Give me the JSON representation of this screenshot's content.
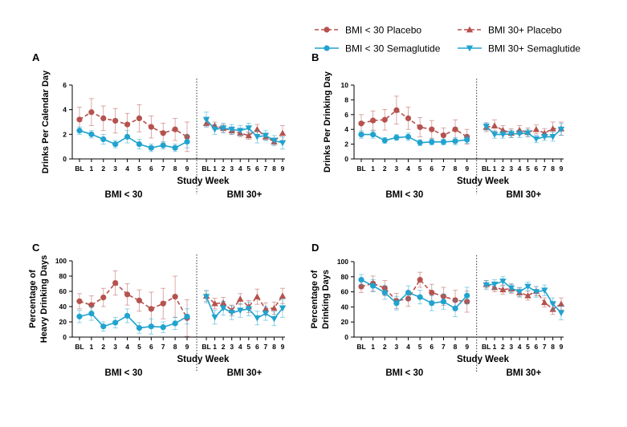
{
  "chart_data": {
    "type": "line",
    "legend": {
      "placement": "top-right",
      "entries": [
        {
          "key": "bmi_lt30_placebo",
          "name": "BMI < 30 Placebo",
          "color": "#b5524e",
          "marker": "circle",
          "dashed": true
        },
        {
          "key": "bmi_30p_placebo",
          "name": "BMI 30+ Placebo",
          "color": "#b5524e",
          "marker": "triangle-up",
          "dashed": true
        },
        {
          "key": "bmi_lt30_sema",
          "name": "BMI < 30 Semaglutide",
          "color": "#21a3cf",
          "marker": "circle",
          "dashed": false
        },
        {
          "key": "bmi_30p_sema",
          "name": "BMI 30+ Semaglutide",
          "color": "#21a3cf",
          "marker": "triangle-down",
          "dashed": false
        }
      ]
    },
    "panels": [
      {
        "label": "A",
        "ylabel_lines": [
          "Drinks Per Calendar Day"
        ],
        "xlabel": "Study Week",
        "ylim": [
          0,
          6
        ],
        "yticks": [
          0,
          2,
          4,
          6
        ],
        "groups": [
          {
            "name": "BMI < 30",
            "x": [
              "BL",
              "1",
              "2",
              "3",
              "4",
              "5",
              "6",
              "7",
              "8",
              "9"
            ],
            "series": [
              {
                "key": "bmi_lt30_placebo",
                "values": [
                  3.2,
                  3.8,
                  3.3,
                  3.1,
                  2.8,
                  3.3,
                  2.6,
                  2.1,
                  2.4,
                  1.8
                ],
                "err": [
                  1.0,
                  1.1,
                  1.0,
                  1.0,
                  0.9,
                  1.1,
                  0.9,
                  0.8,
                  0.9,
                  1.2
                ]
              },
              {
                "key": "bmi_lt30_sema",
                "values": [
                  2.3,
                  2.0,
                  1.6,
                  1.2,
                  1.8,
                  1.2,
                  0.9,
                  1.1,
                  0.9,
                  1.4
                ],
                "err": [
                  0.3,
                  0.3,
                  0.4,
                  0.3,
                  0.5,
                  0.4,
                  0.3,
                  0.3,
                  0.3,
                  0.5
                ]
              }
            ]
          },
          {
            "name": "BMI 30+",
            "x": [
              "BL",
              "1",
              "2",
              "3",
              "4",
              "5",
              "6",
              "7",
              "8",
              "9"
            ],
            "series": [
              {
                "key": "bmi_30p_placebo",
                "values": [
                  2.9,
                  2.7,
                  2.5,
                  2.3,
                  2.1,
                  1.9,
                  2.4,
                  1.8,
                  1.4,
                  2.1
                ],
                "err": [
                  0.3,
                  0.3,
                  0.3,
                  0.3,
                  0.3,
                  0.3,
                  0.4,
                  0.3,
                  0.3,
                  0.6
                ]
              },
              {
                "key": "bmi_30p_sema",
                "values": [
                  3.2,
                  2.4,
                  2.5,
                  2.4,
                  2.3,
                  2.5,
                  1.8,
                  1.9,
                  1.5,
                  1.3
                ],
                "err": [
                  0.6,
                  0.4,
                  0.4,
                  0.4,
                  0.4,
                  0.4,
                  0.5,
                  0.4,
                  0.4,
                  0.5
                ]
              }
            ]
          }
        ]
      },
      {
        "label": "B",
        "ylabel_lines": [
          "Drinks Per Drinking Day"
        ],
        "xlabel": "Study Week",
        "ylim": [
          0,
          10
        ],
        "yticks": [
          0,
          2,
          4,
          6,
          8,
          10
        ],
        "groups": [
          {
            "name": "BMI < 30",
            "x": [
              "BL",
              "1",
              "2",
              "3",
              "4",
              "5",
              "6",
              "7",
              "8",
              "9"
            ],
            "series": [
              {
                "key": "bmi_lt30_placebo",
                "values": [
                  4.8,
                  5.2,
                  5.3,
                  6.6,
                  5.5,
                  4.3,
                  4.0,
                  3.2,
                  4.0,
                  3.0
                ],
                "err": [
                  1.2,
                  1.3,
                  1.4,
                  1.9,
                  1.5,
                  1.3,
                  1.2,
                  1.0,
                  1.3,
                  1.0
                ]
              },
              {
                "key": "bmi_lt30_sema",
                "values": [
                  3.3,
                  3.3,
                  2.5,
                  2.9,
                  3.0,
                  2.2,
                  2.3,
                  2.3,
                  2.4,
                  2.6
                ],
                "err": [
                  0.5,
                  0.5,
                  0.4,
                  0.4,
                  0.5,
                  0.4,
                  0.4,
                  0.4,
                  0.5,
                  0.5
                ]
              }
            ]
          },
          {
            "name": "BMI 30+",
            "x": [
              "BL",
              "1",
              "2",
              "3",
              "4",
              "5",
              "6",
              "7",
              "8",
              "9"
            ],
            "series": [
              {
                "key": "bmi_30p_placebo",
                "values": [
                  4.3,
                  4.5,
                  3.9,
                  3.5,
                  3.9,
                  3.6,
                  4.0,
                  3.5,
                  4.1,
                  4.1
                ],
                "err": [
                  0.6,
                  0.8,
                  0.6,
                  0.6,
                  0.6,
                  0.6,
                  0.6,
                  0.6,
                  0.9,
                  0.9
                ]
              },
              {
                "key": "bmi_30p_sema",
                "values": [
                  4.4,
                  3.3,
                  3.3,
                  3.4,
                  3.4,
                  3.5,
                  2.7,
                  3.0,
                  3.0,
                  4.0
                ],
                "err": [
                  0.5,
                  0.5,
                  0.5,
                  0.5,
                  0.5,
                  0.5,
                  0.5,
                  0.5,
                  0.6,
                  0.8
                ]
              }
            ]
          }
        ]
      },
      {
        "label": "C",
        "ylabel_lines": [
          "Percentage of",
          "Heavy Drinking Days"
        ],
        "xlabel": "Study Week",
        "ylim": [
          0,
          100
        ],
        "yticks": [
          0,
          20,
          40,
          60,
          80,
          100
        ],
        "groups": [
          {
            "name": "BMI < 30",
            "x": [
              "BL",
              "1",
              "2",
              "3",
              "4",
              "5",
              "6",
              "7",
              "8",
              "9"
            ],
            "series": [
              {
                "key": "bmi_lt30_placebo",
                "values": [
                  47,
                  42,
                  52,
                  71,
                  56,
                  48,
                  37,
                  44,
                  53,
                  25
                ],
                "err": [
                  10,
                  12,
                  12,
                  16,
                  14,
                  14,
                  22,
                  20,
                  27,
                  24
                ]
              },
              {
                "key": "bmi_lt30_sema",
                "values": [
                  27,
                  31,
                  14,
                  19,
                  28,
                  12,
                  14,
                  13,
                  18,
                  27
                ],
                "err": [
                  8,
                  9,
                  6,
                  7,
                  9,
                  7,
                  10,
                  7,
                  8,
                  10
                ]
              }
            ]
          },
          {
            "name": "BMI 30+",
            "x": [
              "BL",
              "1",
              "2",
              "3",
              "4",
              "5",
              "6",
              "7",
              "8",
              "9"
            ],
            "series": [
              {
                "key": "bmi_30p_placebo",
                "values": [
                  54,
                  44,
                  45,
                  35,
                  50,
                  40,
                  53,
                  37,
                  38,
                  54
                ],
                "err": [
                  7,
                  7,
                  7,
                  7,
                  7,
                  8,
                  10,
                  8,
                  8,
                  10
                ]
              },
              {
                "key": "bmi_30p_sema",
                "values": [
                  53,
                  26,
                  38,
                  32,
                  35,
                  37,
                  25,
                  31,
                  24,
                  38
                ],
                "err": [
                  8,
                  9,
                  9,
                  9,
                  9,
                  9,
                  9,
                  9,
                  9,
                  12
                ]
              }
            ]
          }
        ]
      },
      {
        "label": "D",
        "ylabel_lines": [
          "Percentage of",
          "Drinking Days"
        ],
        "xlabel": "Study Week",
        "ylim": [
          0,
          100
        ],
        "yticks": [
          0,
          20,
          40,
          60,
          80,
          100
        ],
        "groups": [
          {
            "name": "BMI < 30",
            "x": [
              "BL",
              "1",
              "2",
              "3",
              "4",
              "5",
              "6",
              "7",
              "8",
              "9"
            ],
            "series": [
              {
                "key": "bmi_lt30_placebo",
                "values": [
                  67,
                  71,
                  65,
                  48,
                  51,
                  76,
                  59,
                  54,
                  49,
                  47
                ],
                "err": [
                  8,
                  10,
                  10,
                  10,
                  10,
                  10,
                  11,
                  12,
                  13,
                  14
                ]
              },
              {
                "key": "bmi_lt30_sema",
                "values": [
                  76,
                  68,
                  59,
                  45,
                  59,
                  53,
                  45,
                  47,
                  38,
                  55
                ],
                "err": [
                  7,
                  8,
                  9,
                  9,
                  9,
                  9,
                  10,
                  10,
                  11,
                  11
                ]
              }
            ]
          },
          {
            "name": "BMI 30+",
            "x": [
              "BL",
              "1",
              "2",
              "3",
              "4",
              "5",
              "6",
              "7",
              "8",
              "9"
            ],
            "series": [
              {
                "key": "bmi_30p_placebo",
                "values": [
                  70,
                  66,
                  63,
                  64,
                  59,
                  55,
                  61,
                  46,
                  37,
                  44
                ],
                "err": [
                  5,
                  6,
                  6,
                  6,
                  6,
                  6,
                  6,
                  6,
                  7,
                  8
                ]
              },
              {
                "key": "bmi_30p_sema",
                "values": [
                  69,
                  70,
                  74,
                  65,
                  60,
                  67,
                  60,
                  62,
                  44,
                  32
                ],
                "err": [
                  6,
                  6,
                  6,
                  6,
                  6,
                  6,
                  7,
                  7,
                  8,
                  9
                ]
              }
            ]
          }
        ]
      }
    ]
  }
}
